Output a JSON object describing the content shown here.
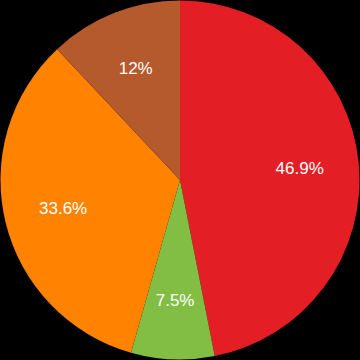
{
  "chart_data": {
    "type": "pie",
    "values": [
      46.9,
      7.5,
      33.6,
      12
    ],
    "value_labels": [
      "46.9%",
      "7.5%",
      "33.6%",
      "12%"
    ],
    "colors": [
      "#e31e24",
      "#82be44",
      "#ff8300",
      "#b55a2d"
    ],
    "data_labels": true
  }
}
